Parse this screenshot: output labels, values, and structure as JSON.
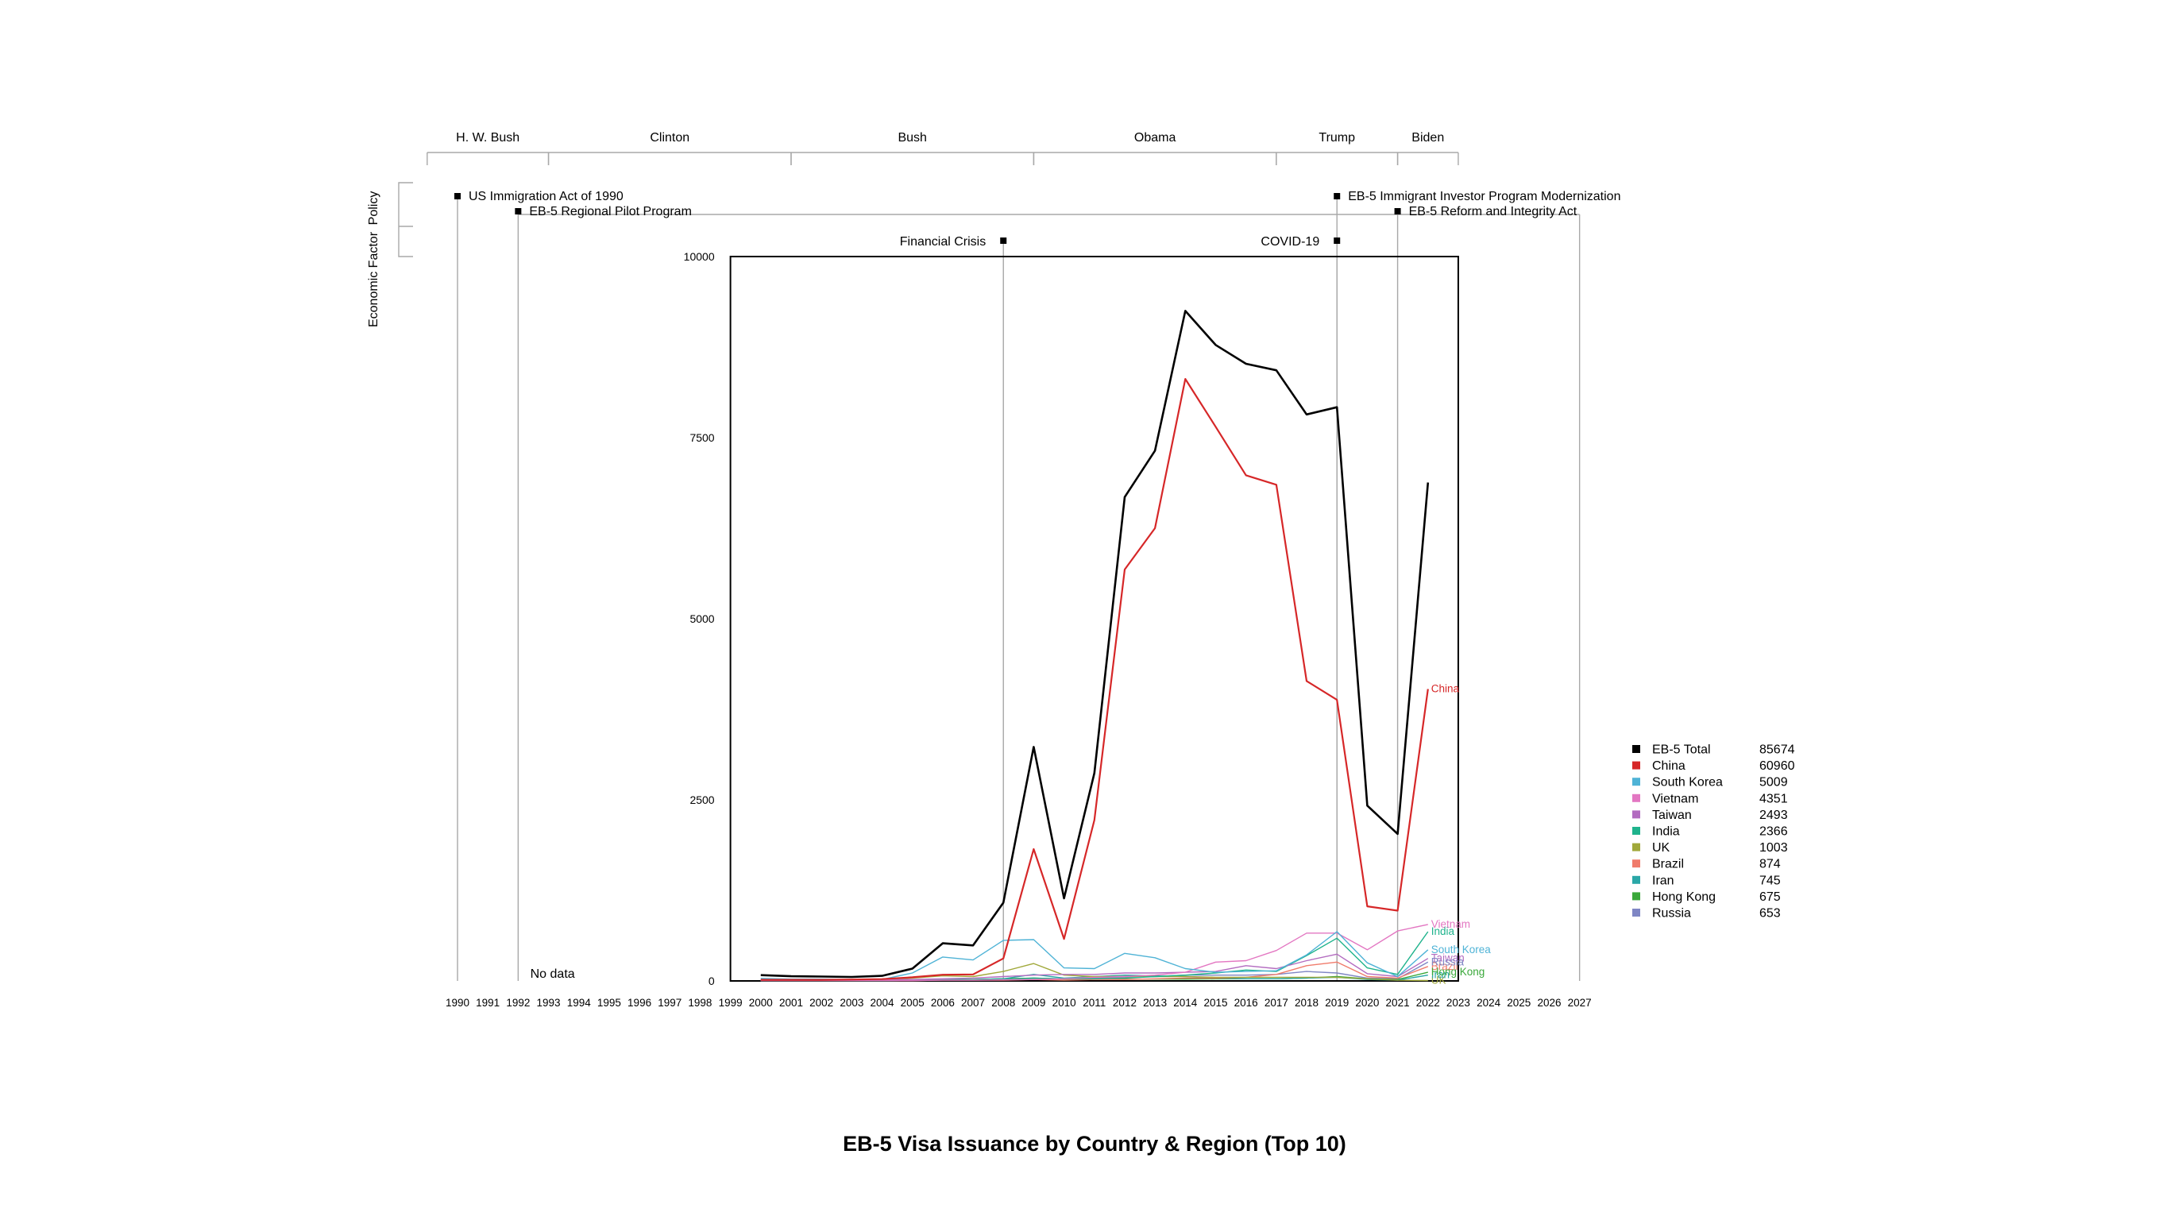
{
  "chart_data": {
    "type": "line",
    "title": "EB-5 Visa Issuance by Country & Region (Top 10)",
    "x_axis_years": [
      1990,
      1991,
      1992,
      1993,
      1994,
      1995,
      1996,
      1997,
      1998,
      1999,
      2000,
      2001,
      2002,
      2003,
      2004,
      2005,
      2006,
      2007,
      2008,
      2009,
      2010,
      2011,
      2012,
      2013,
      2014,
      2015,
      2016,
      2017,
      2018,
      2019,
      2020,
      2021,
      2022,
      2023,
      2024,
      2025,
      2026,
      2027
    ],
    "y_ticks": [
      0,
      2500,
      5000,
      7500,
      10000
    ],
    "ylim": [
      0,
      10000
    ],
    "no_data_label": "No data",
    "side_labels": {
      "policy": "Policy",
      "economic": "Economic Factor"
    },
    "presidents": [
      {
        "name": "H. W. Bush",
        "start": 1989,
        "end": 1993
      },
      {
        "name": "Clinton",
        "start": 1993,
        "end": 2001
      },
      {
        "name": "Bush",
        "start": 2001,
        "end": 2009
      },
      {
        "name": "Obama",
        "start": 2009,
        "end": 2017
      },
      {
        "name": "Trump",
        "start": 2017,
        "end": 2021
      },
      {
        "name": "Biden",
        "start": 2021,
        "end": 2023
      }
    ],
    "policies": [
      {
        "label": "US Immigration Act of 1990",
        "year": 1990,
        "row": 0
      },
      {
        "label": "EB-5 Regional Pilot Program",
        "year": 1992,
        "row": 1
      },
      {
        "label": "EB-5 Immigrant Investor Program Modernization",
        "year": 2019,
        "row": 0
      },
      {
        "label": "EB-5 Reform and Integrity Act",
        "year": 2021,
        "row": 1
      }
    ],
    "economic_factors": [
      {
        "label": "Financial Crisis",
        "year": 2008
      },
      {
        "label": "COVID-19",
        "year": 2019
      }
    ],
    "x": [
      2000,
      2001,
      2002,
      2003,
      2004,
      2005,
      2006,
      2007,
      2008,
      2009,
      2010,
      2011,
      2012,
      2013,
      2014,
      2015,
      2016,
      2017,
      2018,
      2019,
      2020,
      2021,
      2022
    ],
    "series": [
      {
        "name": "EB-5 Total",
        "total": "85674",
        "color": "#000000",
        "width": 2.6,
        "values": [
          80,
          65,
          60,
          55,
          70,
          170,
          520,
          490,
          1080,
          3230,
          1140,
          2870,
          6680,
          7320,
          9250,
          8780,
          8520,
          8430,
          7820,
          7920,
          2420,
          2030,
          6880
        ]
      },
      {
        "name": "China",
        "total": "60960",
        "color": "#d62728",
        "width": 2.2,
        "end_label": "China",
        "values": [
          15,
          15,
          15,
          20,
          25,
          50,
          85,
          90,
          310,
          1820,
          580,
          2220,
          5680,
          6250,
          8310,
          7650,
          6980,
          6850,
          4140,
          3880,
          1030,
          970,
          4030
        ]
      },
      {
        "name": "South Korea",
        "total": "5009",
        "color": "#4fb3d6",
        "width": 1.4,
        "end_label": "South Korea",
        "values": [
          35,
          25,
          25,
          20,
          20,
          110,
          330,
          290,
          560,
          570,
          180,
          170,
          380,
          320,
          170,
          120,
          130,
          140,
          360,
          680,
          250,
          60,
          430
        ]
      },
      {
        "name": "Vietnam",
        "total": "4351",
        "color": "#e377c2",
        "width": 1.4,
        "end_label": "Vietnam",
        "values": [
          5,
          5,
          5,
          5,
          5,
          5,
          10,
          10,
          15,
          20,
          30,
          50,
          60,
          80,
          120,
          260,
          280,
          420,
          660,
          660,
          430,
          690,
          780
        ]
      },
      {
        "name": "Taiwan",
        "total": "2493",
        "color": "#b36cc0",
        "width": 1.4,
        "end_label": "Taiwan",
        "values": [
          20,
          15,
          15,
          15,
          15,
          20,
          30,
          40,
          60,
          80,
          90,
          90,
          110,
          110,
          120,
          130,
          210,
          170,
          280,
          370,
          100,
          60,
          310
        ]
      },
      {
        "name": "India",
        "total": "2366",
        "color": "#1fb38c",
        "width": 1.4,
        "end_label": "India",
        "values": [
          5,
          5,
          5,
          5,
          5,
          10,
          15,
          20,
          20,
          40,
          30,
          30,
          40,
          60,
          80,
          110,
          150,
          130,
          350,
          590,
          180,
          90,
          680
        ]
      },
      {
        "name": "UK",
        "total": "1003",
        "color": "#a0a83a",
        "width": 1.4,
        "end_label": "UK",
        "values": [
          20,
          15,
          15,
          15,
          20,
          40,
          70,
          60,
          130,
          240,
          80,
          60,
          60,
          60,
          60,
          50,
          50,
          50,
          50,
          50,
          30,
          10,
          5
        ]
      },
      {
        "name": "Brazil",
        "total": "874",
        "color": "#f07b6b",
        "width": 1.4,
        "end_label": "Brazil",
        "values": [
          5,
          5,
          5,
          5,
          5,
          5,
          10,
          10,
          10,
          20,
          10,
          20,
          20,
          30,
          40,
          40,
          50,
          90,
          210,
          260,
          60,
          40,
          200
        ]
      },
      {
        "name": "Iran",
        "total": "745",
        "color": "#2aa7a7",
        "width": 1.4,
        "end_label": "Iran",
        "values": [
          5,
          5,
          5,
          5,
          5,
          10,
          20,
          20,
          30,
          90,
          40,
          60,
          80,
          70,
          60,
          40,
          30,
          30,
          40,
          50,
          20,
          10,
          80
        ]
      },
      {
        "name": "Hong Kong",
        "total": "675",
        "color": "#3aa83a",
        "width": 1.4,
        "end_label": "Hong Kong",
        "values": [
          10,
          10,
          10,
          10,
          10,
          15,
          25,
          20,
          30,
          40,
          25,
          25,
          25,
          25,
          25,
          30,
          30,
          30,
          40,
          60,
          30,
          20,
          120
        ]
      },
      {
        "name": "Russia",
        "total": "653",
        "color": "#7f86c4",
        "width": 1.4,
        "end_label": "Russia",
        "values": [
          5,
          5,
          5,
          5,
          5,
          10,
          20,
          20,
          30,
          40,
          30,
          40,
          50,
          60,
          80,
          80,
          80,
          90,
          130,
          110,
          40,
          30,
          260
        ]
      }
    ]
  }
}
